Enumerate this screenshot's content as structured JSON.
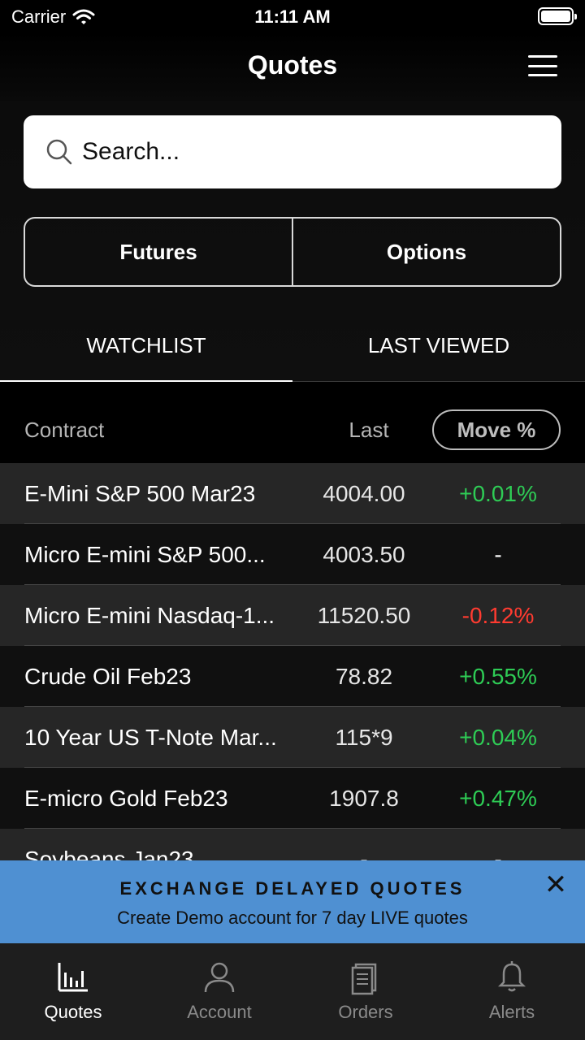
{
  "status_bar": {
    "carrier": "Carrier",
    "time": "11:11 AM"
  },
  "header": {
    "title": "Quotes"
  },
  "search": {
    "placeholder": "Search..."
  },
  "segments": [
    "Futures",
    "Options"
  ],
  "tabs": [
    "WATCHLIST",
    "LAST VIEWED"
  ],
  "columns": {
    "contract": "Contract",
    "last": "Last",
    "move": "Move %"
  },
  "rows": [
    {
      "name": "E-Mini S&P 500 Mar23",
      "last": "4004.00",
      "move": "+0.01%"
    },
    {
      "name": "Micro E-mini S&P 500...",
      "last": "4003.50",
      "move": "-"
    },
    {
      "name": "Micro E-mini Nasdaq-1...",
      "last": "11520.50",
      "move": "-0.12%"
    },
    {
      "name": "Crude Oil Feb23",
      "last": "78.82",
      "move": "+0.55%"
    },
    {
      "name": "10 Year US T-Note Mar...",
      "last": "115*9",
      "move": "+0.04%"
    },
    {
      "name": "E-micro Gold Feb23",
      "last": "1907.8",
      "move": "+0.47%"
    },
    {
      "name": "Soybeans Jan23",
      "last": "-",
      "move": "-"
    }
  ],
  "banner": {
    "title": "EXCHANGE DELAYED QUOTES",
    "subtitle": "Create Demo account for 7 day LIVE quotes"
  },
  "tabbar": [
    "Quotes",
    "Account",
    "Orders",
    "Alerts"
  ],
  "colors": {
    "up": "#2ecc55",
    "down": "#ff3b30",
    "banner": "#4f90d2"
  }
}
